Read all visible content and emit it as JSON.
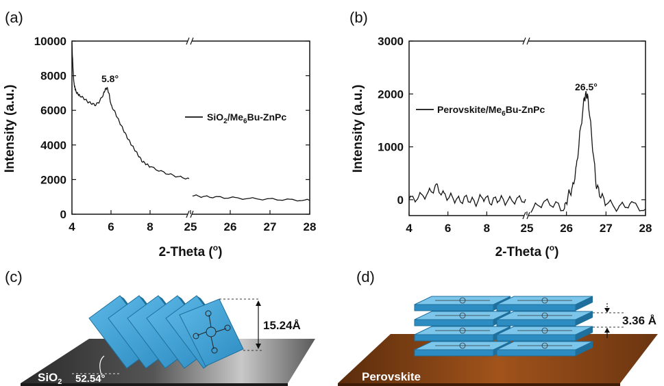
{
  "panels": {
    "a": {
      "label": "(a)"
    },
    "b": {
      "label": "(b)"
    },
    "c": {
      "label": "(c)",
      "dimension": "15.24Å",
      "angle": "52.54°",
      "substrate": "SiO",
      "substrate_sub": "2"
    },
    "d": {
      "label": "(d)",
      "dimension": "3.36 Å",
      "substrate": "Perovskite"
    }
  },
  "colors": {
    "line": "#111111",
    "film_blue": "#3ea1d6",
    "sio2_dark": "#3a3a3a",
    "sio2_light": "#bdbdbd",
    "perovskite": "#8b4513"
  },
  "chart_data": [
    {
      "type": "line",
      "panel": "a",
      "xlabel": "2-Theta (°)",
      "xlabel_main": "2-Theta (",
      "xlabel_deg": "o",
      "xlabel_close": ")",
      "ylabel": "Intensity (a.u.)",
      "ylim": [
        0,
        10000
      ],
      "y_ticks": [
        "0",
        "2000",
        "4000",
        "6000",
        "8000",
        "10000"
      ],
      "x_ticks_left": [
        "4",
        "6",
        "8"
      ],
      "x_ticks_right": [
        "25",
        "26",
        "27",
        "28"
      ],
      "x_break": true,
      "x_segments": [
        [
          4,
          25
        ],
        [
          25,
          28
        ]
      ],
      "legend": {
        "main": "SiO",
        "sub1": "2",
        "mid": "/Me",
        "sub2": "6",
        "tail": "Bu-ZnPc"
      },
      "annotation": {
        "text": "5.8°",
        "x": 5.8,
        "y": 7300
      },
      "series": [
        {
          "segment": 0,
          "x": [
            4.0,
            4.03,
            4.07,
            4.1,
            4.15,
            4.2,
            4.3,
            4.4,
            4.6,
            4.8,
            5.0,
            5.2,
            5.4,
            5.6,
            5.7,
            5.8,
            5.9,
            6.0,
            6.2,
            6.4,
            6.6,
            6.8,
            7.0,
            7.2,
            7.4,
            7.6,
            7.8,
            8.0,
            8.5,
            9.0,
            9.5,
            10.0
          ],
          "y": [
            9900,
            9000,
            8100,
            7600,
            7300,
            7100,
            6950,
            6850,
            6700,
            6500,
            6400,
            6300,
            6500,
            6900,
            7200,
            7300,
            6950,
            6300,
            5900,
            5400,
            4950,
            4500,
            4100,
            3750,
            3400,
            3050,
            2900,
            2750,
            2500,
            2300,
            2150,
            2050
          ]
        },
        {
          "segment": 1,
          "x": [
            25.05,
            25.3,
            25.6,
            26.0,
            26.5,
            27.0,
            27.5,
            28.0
          ],
          "y": [
            1080,
            1020,
            990,
            950,
            900,
            870,
            830,
            800
          ]
        }
      ]
    },
    {
      "type": "line",
      "panel": "b",
      "xlabel": "2-Theta (°)",
      "xlabel_main": "2-Theta (",
      "xlabel_deg": "o",
      "xlabel_close": ")",
      "ylabel": "Intensity (a.u.)",
      "ylim": [
        -300,
        3000
      ],
      "y_ticks": [
        "0",
        "1000",
        "2000",
        "3000"
      ],
      "x_ticks_left": [
        "4",
        "6",
        "8"
      ],
      "x_ticks_right": [
        "25",
        "26",
        "27",
        "28"
      ],
      "x_break": true,
      "x_segments": [
        [
          4,
          25
        ],
        [
          25,
          28
        ]
      ],
      "legend": {
        "main": "Perovskite/Me",
        "sub1": "6",
        "tail": "Bu-ZnPc"
      },
      "annotation": {
        "text": "26.5°",
        "x": 26.5,
        "y": 2000
      },
      "series": [
        {
          "segment": 0,
          "x": [
            4.0,
            4.5,
            5.0,
            5.4,
            5.8,
            6.2,
            6.6,
            7.0,
            7.4,
            7.8,
            8.2,
            8.6,
            9.0,
            9.5,
            10.0
          ],
          "y": [
            0,
            50,
            120,
            250,
            80,
            40,
            -20,
            30,
            -60,
            60,
            -40,
            20,
            -30,
            0,
            10
          ]
        },
        {
          "segment": 1,
          "x": [
            25.1,
            25.4,
            25.7,
            25.95,
            26.05,
            26.15,
            26.25,
            26.35,
            26.45,
            26.5,
            26.55,
            26.65,
            26.75,
            26.85,
            27.0,
            27.3,
            27.6,
            28.0
          ],
          "y": [
            -200,
            -50,
            -80,
            -180,
            100,
            200,
            600,
            1300,
            1900,
            2000,
            1900,
            1100,
            300,
            100,
            -50,
            -150,
            -80,
            -180
          ]
        }
      ]
    }
  ]
}
